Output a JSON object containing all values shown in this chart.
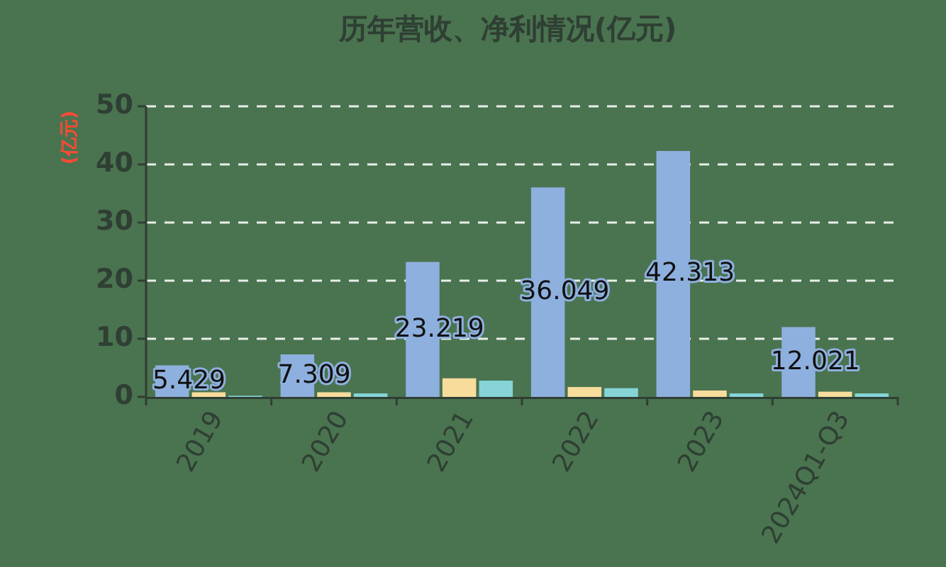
{
  "chart_data": {
    "type": "bar",
    "title": "历年营收、净利情况(亿元)",
    "ylabel": "(亿元)",
    "categories": [
      "2019",
      "2020",
      "2021",
      "2022",
      "2023",
      "2024Q1-Q3"
    ],
    "series": [
      {
        "color": "#8eb0de",
        "values": [
          5.429,
          7.309,
          23.219,
          36.049,
          42.313,
          12.021
        ],
        "value_labels": [
          "5.429",
          "7.309",
          "23.219",
          "36.049",
          "42.313",
          "12.021"
        ]
      },
      {
        "color": "#f8dc9c",
        "values": [
          0.8,
          0.8,
          3.2,
          1.7,
          1.1,
          0.9
        ]
      },
      {
        "color": "#86d4d8",
        "values": [
          0.2,
          0.6,
          2.8,
          1.5,
          0.6,
          0.6
        ]
      }
    ],
    "ylim": [
      0,
      50
    ],
    "yticks": [
      0,
      10,
      20,
      30,
      40,
      50
    ],
    "grid": "y"
  }
}
